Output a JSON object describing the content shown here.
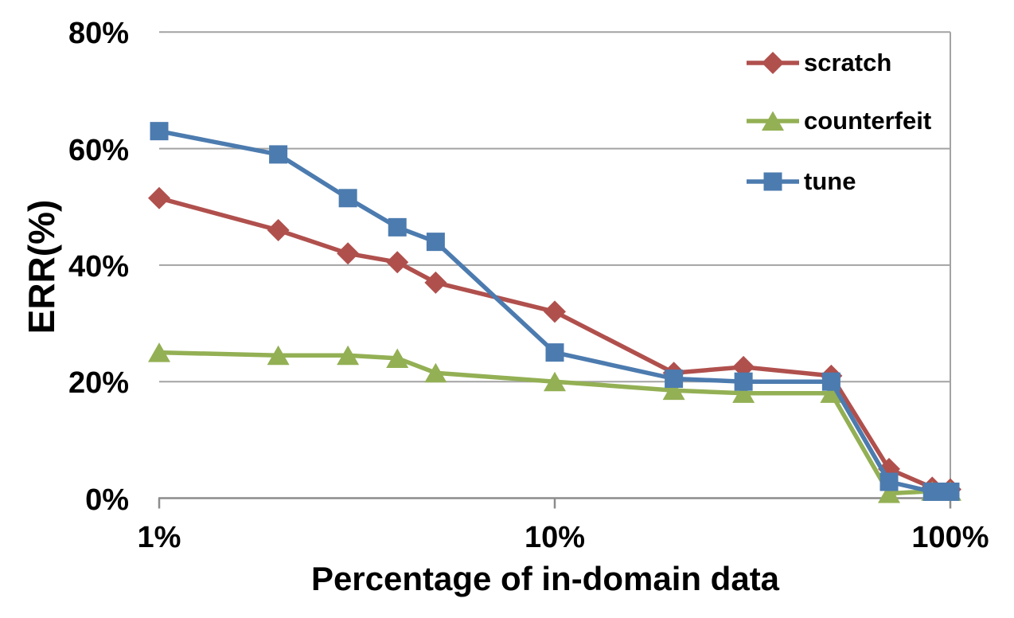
{
  "chart_data": {
    "type": "line",
    "title": "",
    "xlabel": "Percentage of in-domain data",
    "ylabel": "ERR(%)",
    "x_scale": "log",
    "xlim": [
      1,
      100
    ],
    "ylim": [
      0,
      80
    ],
    "grid": "horizontal",
    "legend_position": "top-right",
    "x": [
      1,
      2,
      3,
      4,
      5,
      10,
      20,
      30,
      50,
      70,
      90,
      100
    ],
    "xticks": [
      {
        "label": "1%",
        "value": 1
      },
      {
        "label": "10%",
        "value": 10
      },
      {
        "label": "100%",
        "value": 100
      }
    ],
    "yticks": [
      {
        "label": "0%",
        "value": 0
      },
      {
        "label": "20%",
        "value": 20
      },
      {
        "label": "40%",
        "value": 40
      },
      {
        "label": "60%",
        "value": 60
      },
      {
        "label": "80%",
        "value": 80
      }
    ],
    "series": [
      {
        "name": "scratch",
        "marker": "diamond",
        "color": "#B0504D",
        "values": [
          51.5,
          46,
          42,
          40.5,
          37,
          32,
          21.5,
          22.5,
          21,
          5,
          1.8,
          1.5
        ]
      },
      {
        "name": "counterfeit",
        "marker": "triangle",
        "color": "#93B054",
        "values": [
          25,
          24.5,
          24.5,
          24,
          21.5,
          20,
          18.5,
          18,
          18,
          0.8,
          1.2,
          1.2
        ]
      },
      {
        "name": "tune",
        "marker": "square",
        "color": "#4C7BAF",
        "values": [
          63,
          59,
          51.5,
          46.5,
          44,
          25,
          20.5,
          20,
          20,
          2.8,
          1.1,
          1.1
        ]
      }
    ],
    "colors": {
      "gridline": "#A3A3A3",
      "axis": "#8C8C8C",
      "text": "#000000",
      "background": "#FFFFFF"
    }
  }
}
